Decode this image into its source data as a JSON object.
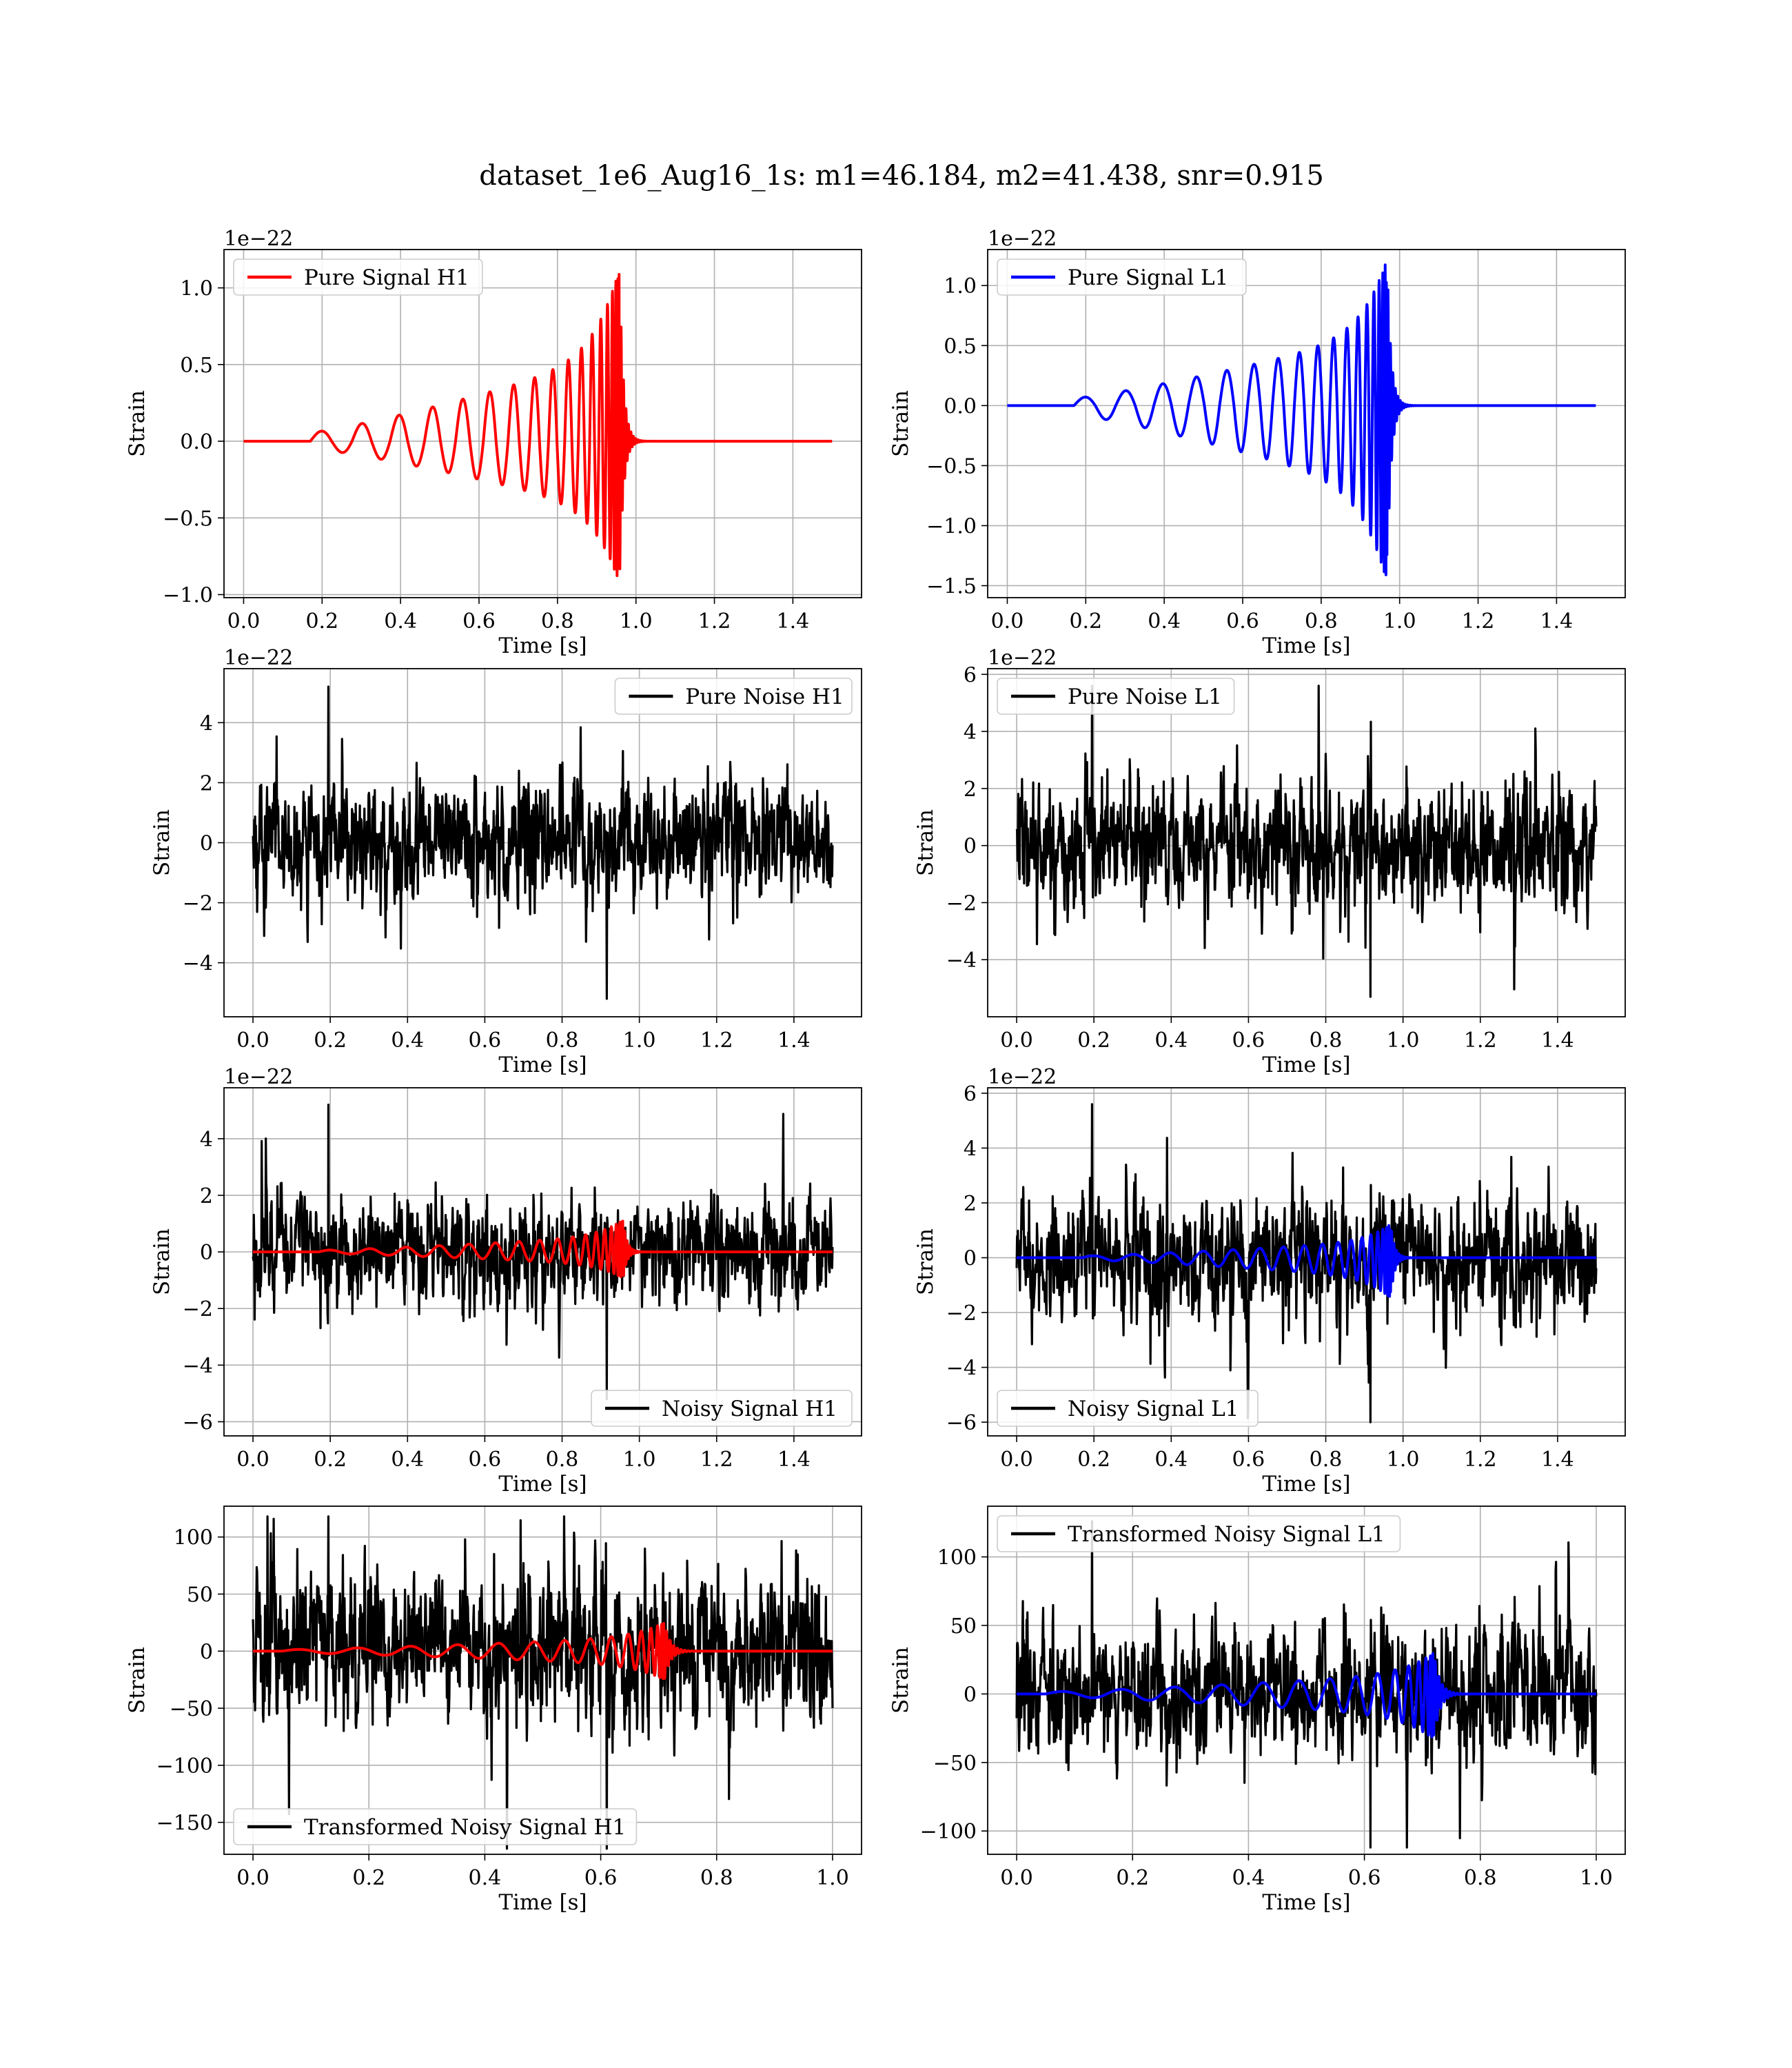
{
  "figure": {
    "title": "dataset_1e6_Aug16_1s: m1=46.184, m2=41.438, snr=0.915"
  },
  "colors": {
    "h1_signal": "#ff0000",
    "l1_signal": "#0000ff",
    "noise": "#000000",
    "grid": "#b0b0b0"
  },
  "chart_data": [
    {
      "id": "pure-signal-h1",
      "type": "line",
      "xlabel": "Time [s]",
      "ylabel": "Strain",
      "offset_text": "1e−22",
      "xlim": [
        -0.05,
        1.575
      ],
      "ylim": [
        -1.02,
        1.25
      ],
      "xticks": [
        0.0,
        0.2,
        0.4,
        0.6,
        0.8,
        1.0,
        1.2,
        1.4
      ],
      "xtick_labels": [
        "0.0",
        "0.2",
        "0.4",
        "0.6",
        "0.8",
        "1.0",
        "1.2",
        "1.4"
      ],
      "yticks": [
        -1.0,
        -0.5,
        0.0,
        0.5,
        1.0
      ],
      "ytick_labels": [
        "−1.0",
        "−0.5",
        "0.0",
        "0.5",
        "1.0"
      ],
      "grid": true,
      "legend_position": "upper left",
      "series": [
        {
          "name": "Pure Signal H1",
          "color": "#ff0000",
          "kind": "chirp",
          "start": 0.17,
          "merger": 0.958,
          "end": 1.5,
          "peak_amp": 1.13,
          "min_amp": -0.93
        }
      ]
    },
    {
      "id": "pure-signal-l1",
      "type": "line",
      "xlabel": "Time [s]",
      "ylabel": "Strain",
      "offset_text": "1e−22",
      "xlim": [
        -0.05,
        1.575
      ],
      "ylim": [
        -1.6,
        1.3
      ],
      "xticks": [
        0.0,
        0.2,
        0.4,
        0.6,
        0.8,
        1.0,
        1.2,
        1.4
      ],
      "xtick_labels": [
        "0.0",
        "0.2",
        "0.4",
        "0.6",
        "0.8",
        "1.0",
        "1.2",
        "1.4"
      ],
      "yticks": [
        -1.5,
        -1.0,
        -0.5,
        0.0,
        0.5,
        1.0
      ],
      "ytick_labels": [
        "−1.5",
        "−1.0",
        "−0.5",
        "0.0",
        "0.5",
        "1.0"
      ],
      "grid": true,
      "legend_position": "upper left",
      "series": [
        {
          "name": "Pure Signal L1",
          "color": "#0000ff",
          "kind": "chirp",
          "start": 0.17,
          "merger": 0.968,
          "end": 1.5,
          "peak_amp": 1.22,
          "min_amp": -1.47
        }
      ]
    },
    {
      "id": "pure-noise-h1",
      "type": "line",
      "xlabel": "Time [s]",
      "ylabel": "Strain",
      "offset_text": "1e−22",
      "xlim": [
        -0.075,
        1.575
      ],
      "ylim": [
        -5.8,
        5.8
      ],
      "xticks": [
        0.0,
        0.2,
        0.4,
        0.6,
        0.8,
        1.0,
        1.2,
        1.4
      ],
      "xtick_labels": [
        "0.0",
        "0.2",
        "0.4",
        "0.6",
        "0.8",
        "1.0",
        "1.2",
        "1.4"
      ],
      "yticks": [
        -4,
        -2,
        0,
        2,
        4
      ],
      "ytick_labels": [
        "−4",
        "−2",
        "0",
        "2",
        "4"
      ],
      "grid": true,
      "legend_position": "upper right",
      "series": [
        {
          "name": "Pure Noise H1",
          "color": "#000000",
          "kind": "noise",
          "start": 0.0,
          "end": 1.5,
          "max": 5.2,
          "min": -5.2
        }
      ]
    },
    {
      "id": "pure-noise-l1",
      "type": "line",
      "xlabel": "Time [s]",
      "ylabel": "Strain",
      "offset_text": "1e−22",
      "xlim": [
        -0.075,
        1.575
      ],
      "ylim": [
        -6.0,
        6.2
      ],
      "xticks": [
        0.0,
        0.2,
        0.4,
        0.6,
        0.8,
        1.0,
        1.2,
        1.4
      ],
      "xtick_labels": [
        "0.0",
        "0.2",
        "0.4",
        "0.6",
        "0.8",
        "1.0",
        "1.2",
        "1.4"
      ],
      "yticks": [
        -4,
        -2,
        0,
        2,
        4,
        6
      ],
      "ytick_labels": [
        "−4",
        "−2",
        "0",
        "2",
        "4",
        "6"
      ],
      "grid": true,
      "legend_position": "upper left",
      "series": [
        {
          "name": "Pure Noise L1",
          "color": "#000000",
          "kind": "noise",
          "start": 0.0,
          "end": 1.5,
          "max": 5.6,
          "min": -5.3
        }
      ]
    },
    {
      "id": "noisy-signal-h1",
      "type": "line",
      "xlabel": "Time [s]",
      "ylabel": "Strain",
      "offset_text": "1e−22",
      "xlim": [
        -0.075,
        1.575
      ],
      "ylim": [
        -6.5,
        5.8
      ],
      "xticks": [
        0.0,
        0.2,
        0.4,
        0.6,
        0.8,
        1.0,
        1.2,
        1.4
      ],
      "xtick_labels": [
        "0.0",
        "0.2",
        "0.4",
        "0.6",
        "0.8",
        "1.0",
        "1.2",
        "1.4"
      ],
      "yticks": [
        -6,
        -4,
        -2,
        0,
        2,
        4
      ],
      "ytick_labels": [
        "−6",
        "−4",
        "−2",
        "0",
        "2",
        "4"
      ],
      "grid": true,
      "legend_position": "lower right",
      "series": [
        {
          "name": "Noisy Signal H1",
          "color": "#000000",
          "kind": "noise",
          "start": 0.0,
          "end": 1.5,
          "max": 5.2,
          "min": -5.2
        },
        {
          "color": "#ff0000",
          "kind": "chirp",
          "start": 0.17,
          "merger": 0.958,
          "end": 1.5,
          "peak_amp": 1.13,
          "min_amp": -0.93
        }
      ]
    },
    {
      "id": "noisy-signal-l1",
      "type": "line",
      "xlabel": "Time [s]",
      "ylabel": "Strain",
      "offset_text": "1e−22",
      "xlim": [
        -0.075,
        1.575
      ],
      "ylim": [
        -6.5,
        6.2
      ],
      "xticks": [
        0.0,
        0.2,
        0.4,
        0.6,
        0.8,
        1.0,
        1.2,
        1.4
      ],
      "xtick_labels": [
        "0.0",
        "0.2",
        "0.4",
        "0.6",
        "0.8",
        "1.0",
        "1.2",
        "1.4"
      ],
      "yticks": [
        -6,
        -4,
        -2,
        0,
        2,
        4,
        6
      ],
      "ytick_labels": [
        "−6",
        "−4",
        "−2",
        "0",
        "2",
        "4",
        "6"
      ],
      "grid": true,
      "legend_position": "lower left",
      "series": [
        {
          "name": "Noisy Signal L1",
          "color": "#000000",
          "kind": "noise",
          "start": 0.0,
          "end": 1.5,
          "max": 5.6,
          "min": -6.0
        },
        {
          "color": "#0000ff",
          "kind": "chirp",
          "start": 0.17,
          "merger": 0.968,
          "end": 1.5,
          "peak_amp": 1.22,
          "min_amp": -1.47
        }
      ]
    },
    {
      "id": "transformed-noisy-signal-h1",
      "type": "line",
      "xlabel": "Time [s]",
      "ylabel": "Strain",
      "offset_text": "",
      "xlim": [
        -0.05,
        1.05
      ],
      "ylim": [
        -178,
        127
      ],
      "xticks": [
        0.0,
        0.2,
        0.4,
        0.6,
        0.8,
        1.0
      ],
      "xtick_labels": [
        "0.0",
        "0.2",
        "0.4",
        "0.6",
        "0.8",
        "1.0"
      ],
      "yticks": [
        -150,
        -100,
        -50,
        0,
        50,
        100
      ],
      "ytick_labels": [
        "−150",
        "−100",
        "−50",
        "0",
        "50",
        "100"
      ],
      "grid": true,
      "legend_position": "lower left",
      "series": [
        {
          "name": "Transformed Noisy Signal H1",
          "color": "#000000",
          "kind": "noise",
          "start": 0.0,
          "end": 1.0,
          "max": 118,
          "min": -173
        },
        {
          "color": "#ff0000",
          "kind": "chirp",
          "start": 0.05,
          "merger": 0.71,
          "end": 1.0,
          "peak_amp": 25,
          "min_amp": -25
        }
      ]
    },
    {
      "id": "transformed-noisy-signal-l1",
      "type": "line",
      "xlabel": "Time [s]",
      "ylabel": "Strain",
      "offset_text": "",
      "xlim": [
        -0.05,
        1.05
      ],
      "ylim": [
        -117,
        137
      ],
      "xticks": [
        0.0,
        0.2,
        0.4,
        0.6,
        0.8,
        1.0
      ],
      "xtick_labels": [
        "0.0",
        "0.2",
        "0.4",
        "0.6",
        "0.8",
        "1.0"
      ],
      "yticks": [
        -100,
        -50,
        0,
        50,
        100
      ],
      "ytick_labels": [
        "−100",
        "−50",
        "0",
        "50",
        "100"
      ],
      "grid": true,
      "legend_position": "upper left",
      "series": [
        {
          "name": "Transformed Noisy Signal L1",
          "color": "#000000",
          "kind": "noise",
          "start": 0.0,
          "end": 1.0,
          "max": 126,
          "min": -112
        },
        {
          "color": "#0000ff",
          "kind": "chirp",
          "start": 0.05,
          "merger": 0.72,
          "end": 1.0,
          "peak_amp": 30,
          "min_amp": -33
        }
      ]
    }
  ]
}
